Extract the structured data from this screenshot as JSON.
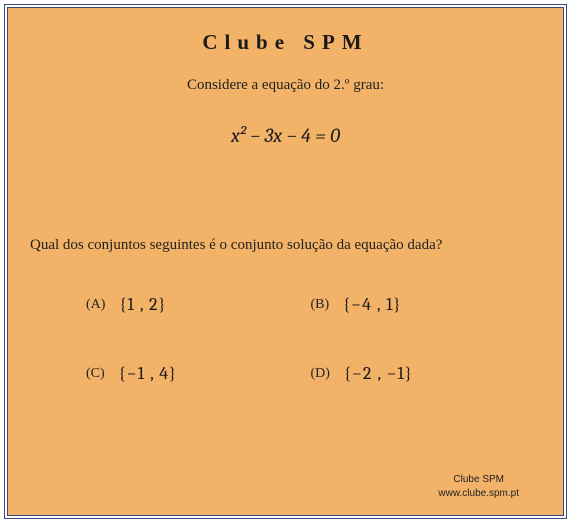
{
  "colors": {
    "background": "#f2b268",
    "frame_border": "#3a4a7a",
    "text": "#1a1a1a",
    "page_bg": "#ffffff"
  },
  "typography": {
    "title_fontsize": 21,
    "title_letterspacing": 7,
    "body_fontsize": 15,
    "equation_fontsize": 20,
    "option_set_fontsize": 18,
    "option_label_fontsize": 14,
    "footer_fontsize": 10,
    "font_family_body": "Georgia, 'Times New Roman', serif",
    "font_family_math": "'Cambria Math', Cambria, Georgia, serif"
  },
  "title": "Clube SPM",
  "prompt": "Considere a equação do 2.º grau:",
  "equation": {
    "raw": "x^2 - 3x - 4 = 0",
    "display": "x² − 3x − 4 = 0"
  },
  "question": "Qual dos conjuntos seguintes é o conjunto solução da equação dada?",
  "options": [
    {
      "label": "(A)",
      "set": "{1 , 2}"
    },
    {
      "label": "(B)",
      "set": "{−4 , 1}"
    },
    {
      "label": "(C)",
      "set": "{−1 , 4}"
    },
    {
      "label": "(D)",
      "set": "{−2 , −1}"
    }
  ],
  "footer": {
    "line1": "Clube SPM",
    "line2": "www.clube.spm.pt"
  }
}
